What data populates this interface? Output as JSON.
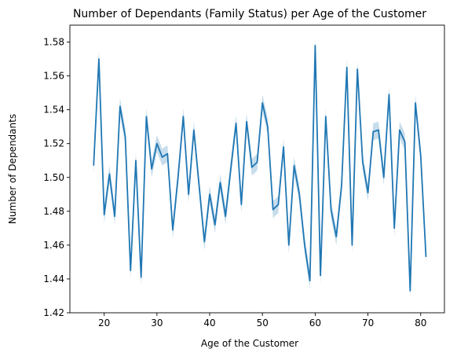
{
  "chart_data": {
    "type": "line",
    "title": "Number of Dependants (Family Status) per Age of the Customer",
    "xlabel": "Age of the Customer",
    "ylabel": "Number of Dependants",
    "xlim": [
      13.5,
      84.5
    ],
    "ylim": [
      1.42,
      1.59
    ],
    "xticks": [
      20,
      30,
      40,
      50,
      60,
      70,
      80
    ],
    "yticks": [
      1.42,
      1.44,
      1.46,
      1.48,
      1.5,
      1.52,
      1.54,
      1.56,
      1.58
    ],
    "ytick_labels": [
      "1.42",
      "1.44",
      "1.46",
      "1.48",
      "1.50",
      "1.52",
      "1.54",
      "1.56",
      "1.58"
    ],
    "grid": false,
    "line_color": "#1f77b4",
    "band_color": "#1f77b4",
    "x": [
      18,
      19,
      20,
      21,
      22,
      23,
      24,
      25,
      26,
      27,
      28,
      29,
      30,
      31,
      32,
      33,
      34,
      35,
      36,
      37,
      38,
      39,
      40,
      41,
      42,
      43,
      44,
      45,
      46,
      47,
      48,
      49,
      50,
      51,
      52,
      53,
      54,
      55,
      56,
      57,
      58,
      59,
      60,
      61,
      62,
      63,
      64,
      65,
      66,
      67,
      68,
      69,
      70,
      71,
      72,
      73,
      74,
      75,
      76,
      77,
      78,
      79,
      80,
      81
    ],
    "y": [
      1.507,
      1.57,
      1.478,
      1.502,
      1.477,
      1.542,
      1.524,
      1.445,
      1.51,
      1.441,
      1.536,
      1.505,
      1.52,
      1.512,
      1.514,
      1.469,
      1.5,
      1.536,
      1.49,
      1.528,
      1.495,
      1.462,
      1.49,
      1.472,
      1.497,
      1.477,
      1.505,
      1.532,
      1.484,
      1.533,
      1.506,
      1.509,
      1.544,
      1.53,
      1.481,
      1.484,
      1.518,
      1.46,
      1.507,
      1.49,
      1.46,
      1.439,
      1.578,
      1.442,
      1.536,
      1.481,
      1.465,
      1.495,
      1.565,
      1.46,
      1.564,
      1.509,
      1.491,
      1.527,
      1.528,
      1.5,
      1.549,
      1.47,
      1.528,
      1.521,
      1.433,
      1.544,
      1.513,
      1.453
    ],
    "ci_halfwidth": 0.005
  }
}
